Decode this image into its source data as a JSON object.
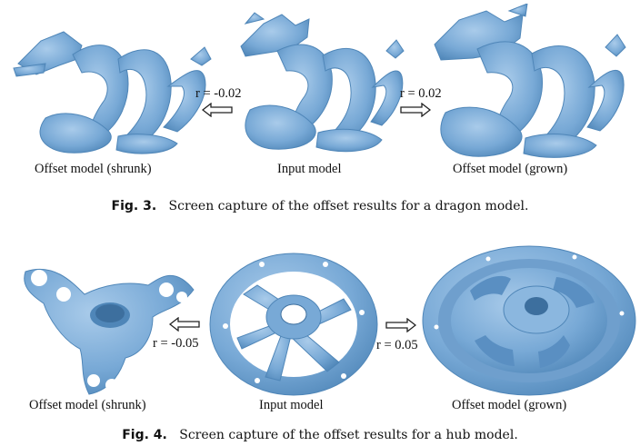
{
  "colors": {
    "model_fill": "#78a9d6",
    "model_dark": "#4f86b8",
    "model_light": "#a9cbea",
    "arrow_stroke": "#222222"
  },
  "fig3": {
    "arrow_left_label": "r = -0.02",
    "arrow_right_label": "r = 0.02",
    "model_labels": [
      "Offset model (shrunk)",
      "Input model",
      "Offset model (grown)"
    ],
    "caption_tag": "Fig. 3.",
    "caption_text": "Screen capture of the offset results for a dragon model."
  },
  "fig4": {
    "arrow_left_label": "r = -0.05",
    "arrow_right_label": "r = 0.05",
    "model_labels": [
      "Offset model (shrunk)",
      "Input model",
      "Offset model (grown)"
    ],
    "caption_tag": "Fig. 4.",
    "caption_text": "Screen capture of the offset results for a hub model."
  }
}
